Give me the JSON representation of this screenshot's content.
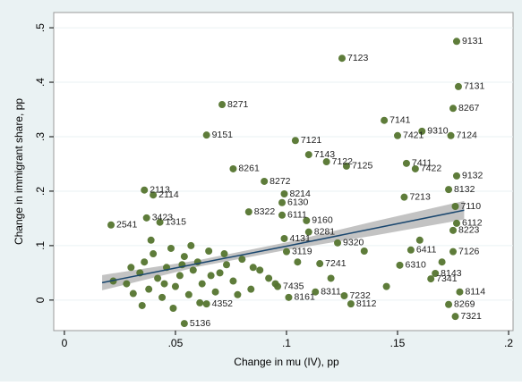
{
  "chart_data": {
    "type": "scatter",
    "x_label": "Change in mu (IV), pp",
    "y_label": "Change in immigrant share, pp",
    "xlim": [
      -0.0048,
      0.202
    ],
    "ylim": [
      -0.056,
      0.528
    ],
    "xticks": [
      0,
      {
        "value": 0.05,
        "label": ".05"
      },
      {
        "value": 0.1,
        "label": ".1"
      },
      {
        "value": 0.15,
        "label": ".15"
      },
      {
        "value": 0.2,
        "label": ".2"
      }
    ],
    "yticks": [
      0,
      {
        "value": 0.1,
        "label": ".1"
      },
      {
        "value": 0.2,
        "label": ".2"
      },
      {
        "value": 0.3,
        "label": ".3"
      },
      {
        "value": 0.4,
        "label": ".4"
      },
      {
        "value": 0.5,
        "label": ".5"
      }
    ],
    "grid": true,
    "point_color": "#55752f",
    "series": [
      {
        "x": [
          0.1766,
          0.125,
          0.1774,
          0.175,
          0.071,
          0.144,
          0.161,
          0.15,
          0.174,
          0.064,
          0.104,
          0.11,
          0.118,
          0.127,
          0.154,
          0.158,
          0.1766,
          0.173,
          0.076,
          0.09,
          0.036,
          0.04,
          0.099,
          0.098,
          0.098,
          0.109,
          0.083,
          0.176,
          0.153,
          0.1766,
          0.175,
          0.175,
          0.021,
          0.037,
          0.043,
          0.11,
          0.123,
          0.115,
          0.1,
          0.151,
          0.167,
          0.165,
          0.178,
          0.176,
          0.173,
          0.129,
          0.113,
          0.126,
          0.096,
          0.101,
          0.064,
          0.054,
          0.099,
          0.156
        ],
        "y": [
          0.475,
          0.444,
          0.392,
          0.352,
          0.359,
          0.33,
          0.31,
          0.302,
          0.302,
          0.303,
          0.293,
          0.267,
          0.254,
          0.246,
          0.251,
          0.241,
          0.228,
          0.203,
          0.241,
          0.218,
          0.202,
          0.193,
          0.195,
          0.179,
          0.156,
          0.146,
          0.162,
          0.172,
          0.189,
          0.141,
          0.128,
          0.089,
          0.138,
          0.151,
          0.143,
          0.125,
          0.105,
          0.067,
          0.089,
          0.064,
          0.049,
          0.039,
          0.015,
          -0.03,
          -0.008,
          -0.007,
          0.015,
          0.008,
          0.025,
          0.005,
          -0.007,
          -0.043,
          0.113,
          0.092
        ],
        "labels": [
          "9131",
          "7123",
          "7131",
          "8267",
          "8271",
          "7141",
          "9310",
          "7421",
          "7124",
          "9151",
          "7121",
          "7143",
          "7122",
          "7125",
          "7411",
          "7422",
          "9132",
          "8132",
          "8261",
          "8272",
          "2113",
          "2114",
          "8214",
          "6130",
          "6111",
          "9160",
          "8322",
          "7110",
          "7213",
          "6112",
          "8223",
          "7126",
          "2541",
          "3423",
          "1315",
          "8281",
          "9320",
          "7241",
          "3119",
          "6310",
          "8143",
          "7341",
          "8114",
          "7321",
          "8269",
          "8112",
          "8311",
          "7232",
          "7435",
          "8161",
          "4352",
          "5136",
          "4131",
          "6411"
        ]
      },
      {
        "x": [
          0.022,
          0.028,
          0.031,
          0.034,
          0.036,
          0.038,
          0.04,
          0.042,
          0.044,
          0.046,
          0.048,
          0.05,
          0.052,
          0.054,
          0.056,
          0.058,
          0.06,
          0.062,
          0.065,
          0.068,
          0.07,
          0.073,
          0.076,
          0.08,
          0.084,
          0.088,
          0.092,
          0.03,
          0.035,
          0.039,
          0.045,
          0.049,
          0.053,
          0.057,
          0.061,
          0.066,
          0.072,
          0.078,
          0.085,
          0.095,
          0.105,
          0.12,
          0.135,
          0.145,
          0.16,
          0.17
        ],
        "y": [
          0.035,
          0.03,
          0.012,
          0.05,
          0.07,
          0.02,
          0.085,
          0.04,
          0.005,
          0.06,
          0.095,
          0.025,
          0.045,
          0.08,
          0.01,
          0.055,
          0.07,
          0.03,
          0.09,
          0.015,
          0.05,
          0.065,
          0.035,
          0.075,
          0.02,
          0.055,
          0.04,
          0.06,
          -0.01,
          0.11,
          0.03,
          -0.015,
          0.065,
          0.1,
          -0.005,
          0.045,
          0.085,
          0.01,
          0.06,
          0.03,
          0.07,
          0.04,
          0.09,
          0.025,
          0.11,
          0.07
        ]
      }
    ],
    "fit": {
      "x": [
        0.017,
        0.06,
        0.1,
        0.14,
        0.18
      ],
      "y": [
        0.032,
        0.067,
        0.099,
        0.132,
        0.165
      ],
      "lower": [
        0.018,
        0.061,
        0.092,
        0.119,
        0.148
      ],
      "upper": [
        0.046,
        0.073,
        0.106,
        0.145,
        0.182
      ],
      "color": "#1a476f",
      "band_color": "#b4b4b4"
    }
  }
}
